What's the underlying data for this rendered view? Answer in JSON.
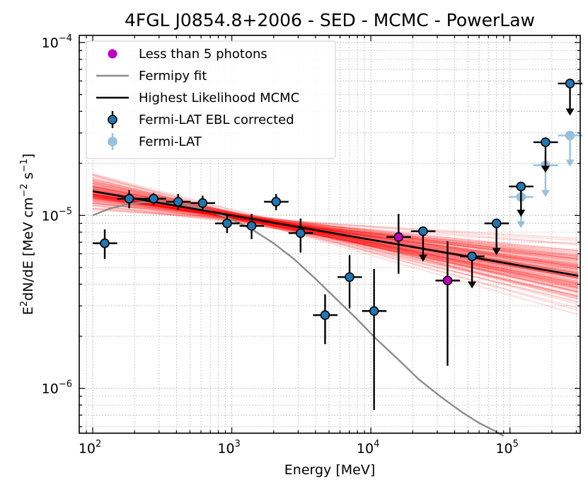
{
  "chart_data": {
    "type": "scatter",
    "title": "4FGL J0854.8+2006 - SED - MCMC - PowerLaw",
    "xlabel": "Energy [MeV]",
    "ylabel_parts": [
      "E",
      "2",
      "dN/dE [MeV cm",
      "−2",
      " s",
      "−1",
      "]"
    ],
    "xscale": "log",
    "yscale": "log",
    "xlim": [
      80,
      320000
    ],
    "ylim": [
      5.5e-07,
      0.00011
    ],
    "x_ticks": [
      {
        "value": 100,
        "base": "10",
        "exp": "2"
      },
      {
        "value": 1000,
        "base": "10",
        "exp": "3"
      },
      {
        "value": 10000,
        "base": "10",
        "exp": "4"
      },
      {
        "value": 100000,
        "base": "10",
        "exp": "5"
      }
    ],
    "y_ticks": [
      {
        "value": 1e-06,
        "base": "10",
        "exp": "−6"
      },
      {
        "value": 1e-05,
        "base": "10",
        "exp": "−5"
      },
      {
        "value": 0.0001,
        "base": "10",
        "exp": "−4"
      }
    ],
    "grid": true,
    "legend_position": "upper-left",
    "legend": [
      {
        "label": "Less than 5 photons",
        "kind": "dot",
        "color": "#bf00bf"
      },
      {
        "label": "Fermipy fit",
        "kind": "line",
        "color": "#8c8c8c"
      },
      {
        "label": "Highest Likelihood MCMC",
        "kind": "line",
        "color": "#000000"
      },
      {
        "label": "Fermi-LAT EBL corrected",
        "kind": "errpoint",
        "color": "#1f77b4"
      },
      {
        "label": "Fermi-LAT",
        "kind": "errpoint-light",
        "color": "#1f77b4"
      }
    ],
    "series": [
      {
        "name": "Fermi-LAT EBL corrected",
        "color": "#1f77b4",
        "points": [
          {
            "x": 122,
            "xlo": 100,
            "xhi": 150,
            "y": 6.9e-06,
            "ylo": 5.6e-06,
            "yhi": 8.3e-06
          },
          {
            "x": 183,
            "xlo": 150,
            "xhi": 225,
            "y": 1.25e-05,
            "ylo": 1.1e-05,
            "yhi": 1.4e-05
          },
          {
            "x": 274,
            "xlo": 225,
            "xhi": 337,
            "y": 1.25e-05,
            "ylo": 1.15e-05,
            "yhi": 1.35e-05
          },
          {
            "x": 411,
            "xlo": 337,
            "xhi": 505,
            "y": 1.2e-05,
            "ylo": 1.08e-05,
            "yhi": 1.33e-05
          },
          {
            "x": 617,
            "xlo": 505,
            "xhi": 758,
            "y": 1.18e-05,
            "ylo": 1.07e-05,
            "yhi": 1.3e-05
          },
          {
            "x": 925,
            "xlo": 758,
            "xhi": 1137,
            "y": 9e-06,
            "ylo": 7.9e-06,
            "yhi": 1.02e-05
          },
          {
            "x": 1388,
            "xlo": 1137,
            "xhi": 1705,
            "y": 8.7e-06,
            "ylo": 7.3e-06,
            "yhi": 1.02e-05
          },
          {
            "x": 2082,
            "xlo": 1705,
            "xhi": 2558,
            "y": 1.2e-05,
            "ylo": 1.07e-05,
            "yhi": 1.33e-05
          },
          {
            "x": 3123,
            "xlo": 2558,
            "xhi": 3837,
            "y": 7.9e-06,
            "ylo": 6.1e-06,
            "yhi": 9.6e-06
          },
          {
            "x": 4685,
            "xlo": 3837,
            "xhi": 5756,
            "y": 2.65e-06,
            "ylo": 1.8e-06,
            "yhi": 3.5e-06
          },
          {
            "x": 7027,
            "xlo": 5756,
            "xhi": 8633,
            "y": 4.4e-06,
            "ylo": 2.9e-06,
            "yhi": 5.9e-06
          },
          {
            "x": 10541,
            "xlo": 8633,
            "xhi": 12950,
            "y": 2.8e-06,
            "ylo": 7.5e-07,
            "yhi": 4.9e-06
          }
        ]
      },
      {
        "name": "Less than 5 photons",
        "color": "#bf00bf",
        "points": [
          {
            "x": 15811,
            "xlo": 12950,
            "xhi": 19425,
            "y": 7.5e-06,
            "ylo": 4.6e-06,
            "yhi": 1.02e-05
          },
          {
            "x": 35575,
            "xlo": 29138,
            "xhi": 43707,
            "y": 4.2e-06,
            "ylo": 1.35e-06,
            "yhi": 7.1e-06
          }
        ]
      },
      {
        "name": "Upper limits EBL corrected",
        "color": "#1f77b4",
        "upper_limits": [
          {
            "x": 23717,
            "xlo": 19425,
            "xhi": 29138,
            "y": 8.1e-06,
            "y_end": 5.5e-06
          },
          {
            "x": 53362,
            "xlo": 43707,
            "xhi": 65560,
            "y": 5.8e-06,
            "y_end": 3.85e-06
          },
          {
            "x": 80043,
            "xlo": 65560,
            "xhi": 98340,
            "y": 9e-06,
            "y_end": 6e-06
          },
          {
            "x": 120065,
            "xlo": 98340,
            "xhi": 147510,
            "y": 1.47e-05,
            "y_end": 1e-05
          },
          {
            "x": 180097,
            "xlo": 147510,
            "xhi": 221265,
            "y": 2.65e-05,
            "y_end": 1.8e-05
          },
          {
            "x": 270146,
            "xlo": 221265,
            "xhi": 331897,
            "y": 5.8e-05,
            "y_end": 3.85e-05
          }
        ]
      },
      {
        "name": "Fermi-LAT",
        "color": "#1f77b4",
        "upper_limits": [
          {
            "x": 120065,
            "xlo": 98340,
            "xhi": 147510,
            "y": 1.28e-05,
            "y_end": 8.6e-06
          },
          {
            "x": 180097,
            "xlo": 147510,
            "xhi": 221265,
            "y": 1.95e-05,
            "y_end": 1.3e-05
          },
          {
            "x": 270146,
            "xlo": 221265,
            "xhi": 331897,
            "y": 2.9e-05,
            "y_end": 1.95e-05
          }
        ]
      }
    ],
    "fermipy_fit": {
      "color": "#8c8c8c",
      "x": [
        100,
        130,
        170,
        220,
        300,
        400,
        550,
        750,
        1000,
        1400,
        2000,
        2800,
        4000,
        5600,
        8000,
        11000,
        16000,
        22000,
        32000,
        45000,
        60000,
        80000,
        90000
      ],
      "y": [
        1e-05,
        1.09e-05,
        1.15e-05,
        1.19e-05,
        1.2e-05,
        1.18e-05,
        1.12e-05,
        1.04e-05,
        9.5e-06,
        8.3e-06,
        6.9e-06,
        5.6e-06,
        4.3e-06,
        3.3e-06,
        2.5e-06,
        1.92e-06,
        1.45e-06,
        1.13e-06,
        8.9e-07,
        7.3e-07,
        6.3e-07,
        5.6e-07,
        5.3e-07
      ]
    },
    "best_fit": {
      "color": "#000000",
      "norm_at_100MeV": 1.38e-05,
      "index": 2.14
    },
    "mcmc_samples": {
      "color": "#ff0000",
      "count": 120,
      "center_norm": 1.38e-05,
      "center_index": 2.14
    }
  }
}
